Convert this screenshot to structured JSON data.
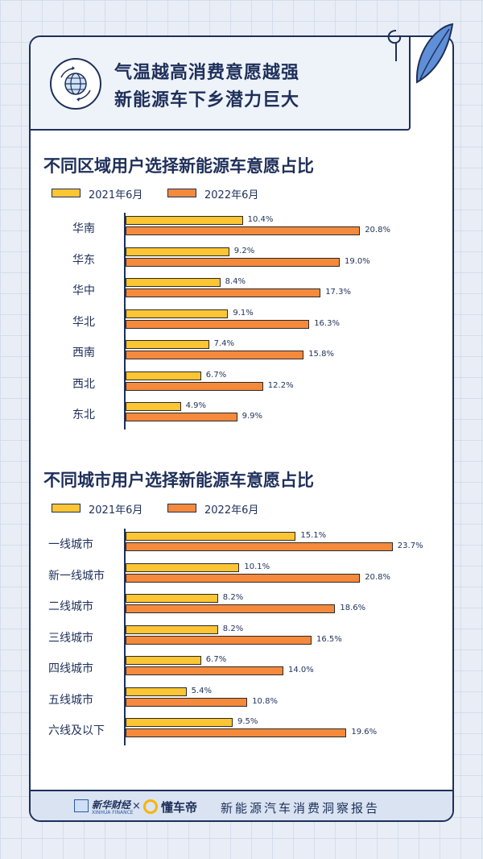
{
  "header": {
    "title_line1": "气温越高消费意愿越强",
    "title_line2": "新能源车下乡潜力巨大"
  },
  "colors": {
    "y2021": "#fcc533",
    "y2022": "#f58a3c",
    "ink": "#1e2f5a"
  },
  "chart_data": [
    {
      "type": "bar",
      "orientation": "horizontal",
      "title": "不同区域用户选择新能源车意愿占比",
      "categories": [
        "华南",
        "华东",
        "华中",
        "华北",
        "西南",
        "西北",
        "东北"
      ],
      "series": [
        {
          "name": "2021年6月",
          "values": [
            10.4,
            9.2,
            8.4,
            9.1,
            7.4,
            6.7,
            4.9
          ],
          "labels": [
            "10.4%",
            "9.2%",
            "8.4%",
            "9.1%",
            "7.4%",
            "6.7%",
            "4.9%"
          ]
        },
        {
          "name": "2022年6月",
          "values": [
            20.8,
            19.0,
            17.3,
            16.3,
            15.8,
            12.2,
            9.9
          ],
          "labels": [
            "20.8%",
            "19.0%",
            "17.3%",
            "16.3%",
            "15.8%",
            "12.2%",
            "9.9%"
          ]
        }
      ],
      "unit": "%",
      "legend": "top-left",
      "grid": false
    },
    {
      "type": "bar",
      "orientation": "horizontal",
      "title": "不同城市用户选择新能源车意愿占比",
      "categories": [
        "一线城市",
        "新一线城市",
        "二线城市",
        "三线城市",
        "四线城市",
        "五线城市",
        "六线及以下"
      ],
      "series": [
        {
          "name": "2021年6月",
          "values": [
            15.1,
            10.1,
            8.2,
            8.2,
            6.7,
            5.4,
            9.5
          ],
          "labels": [
            "15.1%",
            "10.1%",
            "8.2%",
            "8.2%",
            "6.7%",
            "5.4%",
            "9.5%"
          ]
        },
        {
          "name": "2022年6月",
          "values": [
            23.7,
            20.8,
            18.6,
            16.5,
            14.0,
            10.8,
            19.6
          ],
          "labels": [
            "23.7%",
            "20.8%",
            "18.6%",
            "16.5%",
            "14.0%",
            "10.8%",
            "19.6%"
          ]
        }
      ],
      "unit": "%",
      "legend": "top-left",
      "grid": false
    }
  ],
  "footer": {
    "brand1": "新华财经",
    "brand1_sub": "XINHUA FINANCE",
    "separator": "×",
    "brand2": "懂车帝",
    "report": "新能源汽车消费洞察报告"
  }
}
